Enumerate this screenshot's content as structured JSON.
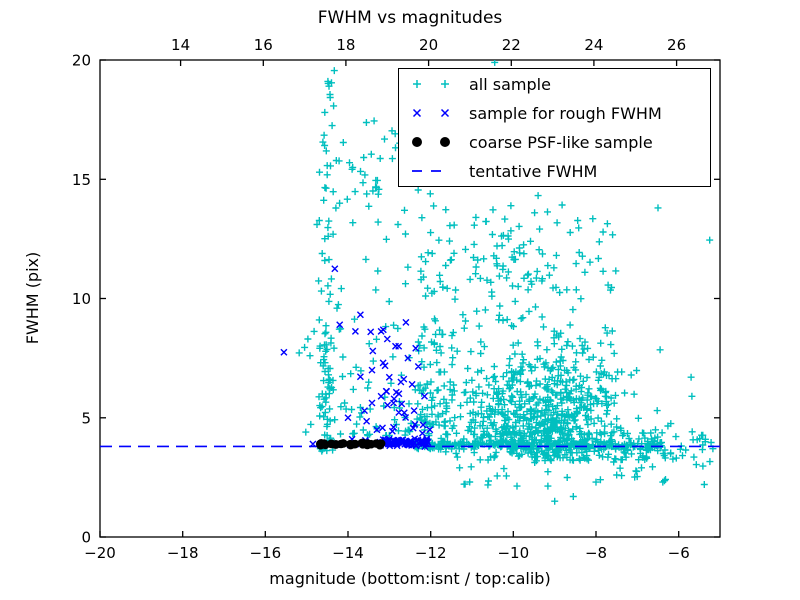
{
  "chart_data": {
    "type": "scatter",
    "title": "FWHM vs magnitudes",
    "xlabel": "magnitude (bottom:isnt / top:calib)",
    "ylabel": "FWHM (pix)",
    "axes": {
      "x_bottom": {
        "range": [
          -20,
          -5
        ],
        "ticks": [
          -20,
          -18,
          -16,
          -14,
          -12,
          -10,
          -8,
          -6
        ],
        "labels": [
          "−20",
          "−18",
          "−16",
          "−14",
          "−12",
          "−10",
          "−8",
          "−6"
        ]
      },
      "x_top": {
        "range": [
          12.05,
          27.05
        ],
        "ticks": [
          14,
          16,
          18,
          20,
          22,
          24,
          26
        ],
        "labels": [
          "14",
          "16",
          "18",
          "20",
          "22",
          "24",
          "26"
        ]
      },
      "y": {
        "range": [
          0,
          20
        ],
        "ticks": [
          0,
          5,
          10,
          15,
          20
        ],
        "labels": [
          "0",
          "5",
          "10",
          "15",
          "20"
        ]
      },
      "grid": false,
      "tick_direction": "in"
    },
    "colors": {
      "all_sample": "#00bfbf",
      "rough_fwhm": "#0000ff",
      "psf_like": "#000000",
      "tentative_line": "#0000ff",
      "axis": "#000000",
      "background": "#ffffff"
    },
    "tentative_fwhm": 3.8,
    "legend": {
      "position": "upper-right",
      "entries": [
        {
          "label": "all sample",
          "marker": "plus",
          "color": "#00bfbf"
        },
        {
          "label": "sample for rough FWHM",
          "marker": "x",
          "color": "#0000ff"
        },
        {
          "label": "coarse PSF-like sample",
          "marker": "dot",
          "color": "#000000"
        },
        {
          "label": "tentative FWHM",
          "marker": "dashed-line",
          "color": "#0000ff"
        }
      ]
    },
    "series": [
      {
        "name": "all sample",
        "marker": "plus",
        "color": "#00bfbf",
        "seed": 20240917,
        "clusters": [
          {
            "count": 50,
            "x": {
              "dist": "normal",
              "mu": -14.52,
              "sigma": 0.09,
              "min": -14.8,
              "max": -14.3
            },
            "y": {
              "dist": "pow",
              "min": 3.6,
              "max": 7.6,
              "k": 1.2,
              "invert": false
            }
          },
          {
            "count": 30,
            "x": {
              "dist": "normal",
              "mu": -14.5,
              "sigma": 0.11,
              "min": -14.8,
              "max": -14.2
            },
            "y": {
              "dist": "uniform",
              "min": 7.6,
              "max": 13.6
            }
          },
          {
            "count": 16,
            "x": {
              "dist": "normal",
              "mu": -14.42,
              "sigma": 0.16,
              "min": -14.8,
              "max": -14.0
            },
            "y": {
              "dist": "uniform",
              "min": 13.6,
              "max": 17.3
            }
          },
          {
            "count": 9,
            "x": {
              "dist": "normal",
              "mu": -14.45,
              "sigma": 0.13,
              "min": -14.75,
              "max": -14.2
            },
            "y": {
              "dist": "uniform",
              "min": 17.7,
              "max": 19.7
            }
          },
          {
            "count": 120,
            "x": {
              "dist": "uniform",
              "min": -14.3,
              "max": -11.45
            },
            "y": {
              "dist": "pow",
              "min": 4.25,
              "max": 16.3,
              "k": 2.1,
              "invert": false
            }
          },
          {
            "count": 14,
            "x": {
              "dist": "normal",
              "mu": -13.5,
              "sigma": 0.28,
              "min": -14.1,
              "max": -12.9
            },
            "y": {
              "dist": "normal",
              "mu": 14.7,
              "sigma": 0.75,
              "min": 13.3,
              "max": 16.2
            }
          },
          {
            "count": 8,
            "x": {
              "dist": "normal",
              "mu": -13.3,
              "sigma": 0.35,
              "min": -14.0,
              "max": -12.6
            },
            "y": {
              "dist": "normal",
              "mu": 16.8,
              "sigma": 0.5,
              "min": 16.0,
              "max": 17.8
            }
          },
          {
            "count": 520,
            "x": {
              "dist": "normal",
              "mu": -9.35,
              "sigma": 1.0,
              "min": -12.3,
              "max": -6.9
            },
            "y": {
              "dist": "halfnormal",
              "base": 3.8,
              "sigma": 2.0,
              "max": 14.2
            }
          },
          {
            "count": 240,
            "x": {
              "dist": "uniform",
              "min": -12.3,
              "max": -7.5
            },
            "y": {
              "dist": "pow",
              "min": 4.3,
              "max": 14.0,
              "k": 2.0,
              "invert": false
            }
          },
          {
            "count": 60,
            "x": {
              "dist": "normal",
              "mu": -9.9,
              "sigma": 0.8,
              "min": -11.9,
              "max": -8.0
            },
            "y": {
              "dist": "uniform",
              "min": 10.2,
              "max": 14.35
            }
          },
          {
            "count": 280,
            "x": {
              "dist": "pow",
              "min": -12.4,
              "max": -6.4,
              "k": 1.3,
              "invert": false
            },
            "y": {
              "dist": "normal",
              "mu": 3.85,
              "sigma": 0.09,
              "min": 3.55,
              "max": 4.15
            }
          },
          {
            "count": 90,
            "x": {
              "dist": "normal",
              "mu": -8.9,
              "sigma": 0.95,
              "min": -11.3,
              "max": -6.6
            },
            "y": {
              "dist": "uniform",
              "min": 3.2,
              "max": 3.8
            }
          },
          {
            "count": 70,
            "x": {
              "dist": "uniform",
              "min": -11.9,
              "max": -5.7
            },
            "y": {
              "dist": "pow",
              "min": 2.1,
              "max": 3.7,
              "k": 1.9,
              "invert": true
            }
          },
          {
            "count": 50,
            "x": {
              "dist": "uniform",
              "min": -7.45,
              "max": -5.15
            },
            "y": {
              "dist": "normal",
              "mu": 4.05,
              "sigma": 0.5,
              "min": 2.9,
              "max": 5.9
            }
          },
          {
            "count": 30,
            "x": {
              "dist": "normal",
              "mu": -11.95,
              "sigma": 0.2,
              "min": -12.35,
              "max": -11.55
            },
            "y": {
              "dist": "pow",
              "min": 4.3,
              "max": 10.5,
              "k": 1.6,
              "invert": false
            }
          }
        ],
        "points": [
          [
            -15.05,
            7.95
          ],
          [
            -14.92,
            7.6
          ],
          [
            -14.97,
            8.3
          ],
          [
            -14.82,
            8.62
          ],
          [
            -15.18,
            7.72
          ],
          [
            -14.9,
            4.72
          ],
          [
            -15.02,
            4.4
          ],
          [
            -10.45,
            19.9
          ],
          [
            -12.35,
            18.85
          ],
          [
            -12.5,
            17.4
          ],
          [
            -7.56,
            7.7
          ],
          [
            -6.45,
            7.85
          ],
          [
            -5.7,
            6.7
          ],
          [
            -5.68,
            5.9
          ],
          [
            -6.5,
            13.8
          ],
          [
            -5.25,
            12.45
          ],
          [
            -5.38,
            2.2
          ],
          [
            -9.0,
            1.5
          ],
          [
            -8.55,
            1.7
          ],
          [
            -7.5,
            2.6
          ],
          [
            -10.6,
            2.35
          ],
          [
            -11.3,
            2.9
          ],
          [
            -8.0,
            2.3
          ],
          [
            -6.9,
            2.9
          ]
        ]
      },
      {
        "name": "sample for rough FWHM",
        "marker": "x",
        "color": "#0000ff",
        "seed": 1234,
        "clusters": [
          {
            "count": 75,
            "x": {
              "dist": "uniform",
              "min": -13.17,
              "max": -12.06
            },
            "y": {
              "dist": "normal",
              "mu": 3.97,
              "sigma": 0.08,
              "min": 3.78,
              "max": 4.25
            }
          },
          {
            "count": 8,
            "x": {
              "dist": "uniform",
              "min": -14.5,
              "max": -13.2
            },
            "y": {
              "dist": "normal",
              "mu": 3.92,
              "sigma": 0.06,
              "min": 3.8,
              "max": 4.1
            }
          },
          {
            "count": 18,
            "x": {
              "dist": "normal",
              "mu": -12.8,
              "sigma": 0.4,
              "min": -13.8,
              "max": -12.1
            },
            "y": {
              "dist": "pow",
              "min": 4.4,
              "max": 9.0,
              "k": 1.5,
              "invert": false
            }
          }
        ],
        "points": [
          [
            -15.55,
            7.75
          ],
          [
            -14.32,
            11.25
          ],
          [
            -14.2,
            8.9
          ],
          [
            -13.82,
            8.62
          ],
          [
            -13.7,
            9.32
          ],
          [
            -13.45,
            8.6
          ],
          [
            -13.2,
            8.62
          ],
          [
            -13.4,
            7.8
          ],
          [
            -13.15,
            7.3
          ],
          [
            -13.42,
            7.0
          ],
          [
            -13.7,
            6.72
          ],
          [
            -13.0,
            6.7
          ],
          [
            -12.72,
            6.5
          ],
          [
            -12.45,
            6.4
          ],
          [
            -13.2,
            5.9
          ],
          [
            -13.42,
            5.62
          ],
          [
            -12.9,
            5.62
          ],
          [
            -12.7,
            5.58
          ],
          [
            -12.4,
            5.3
          ],
          [
            -12.38,
            4.72
          ],
          [
            -13.55,
            4.85
          ],
          [
            -12.15,
            5.9
          ],
          [
            -12.3,
            7.15
          ],
          [
            -12.55,
            7.5
          ],
          [
            -12.85,
            8.0
          ],
          [
            -13.05,
            8.3
          ],
          [
            -12.2,
            4.35
          ],
          [
            -14.85,
            3.9
          ],
          [
            -14.62,
            3.95
          ],
          [
            -13.9,
            4.1
          ],
          [
            -13.58,
            4.05
          ],
          [
            -12.02,
            4.5
          ],
          [
            -12.6,
            9.0
          ],
          [
            -13.6,
            5.3
          ],
          [
            -14.0,
            5.0
          ],
          [
            -12.9,
            4.6
          ],
          [
            -13.3,
            4.5
          ]
        ]
      },
      {
        "name": "coarse PSF-like sample",
        "marker": "dot",
        "color": "#000000",
        "seed": 99,
        "clusters": [
          {
            "count": 27,
            "x": {
              "dist": "uniform",
              "min": -14.68,
              "max": -13.17
            },
            "y": {
              "dist": "normal",
              "mu": 3.9,
              "sigma": 0.03,
              "min": 3.82,
              "max": 3.98
            }
          }
        ],
        "points": [
          [
            -14.67,
            3.9
          ],
          [
            -13.2,
            3.92
          ]
        ]
      },
      {
        "name": "tentative FWHM",
        "marker": "dashed-line",
        "color": "#0000ff",
        "line_y": 3.8
      }
    ]
  }
}
